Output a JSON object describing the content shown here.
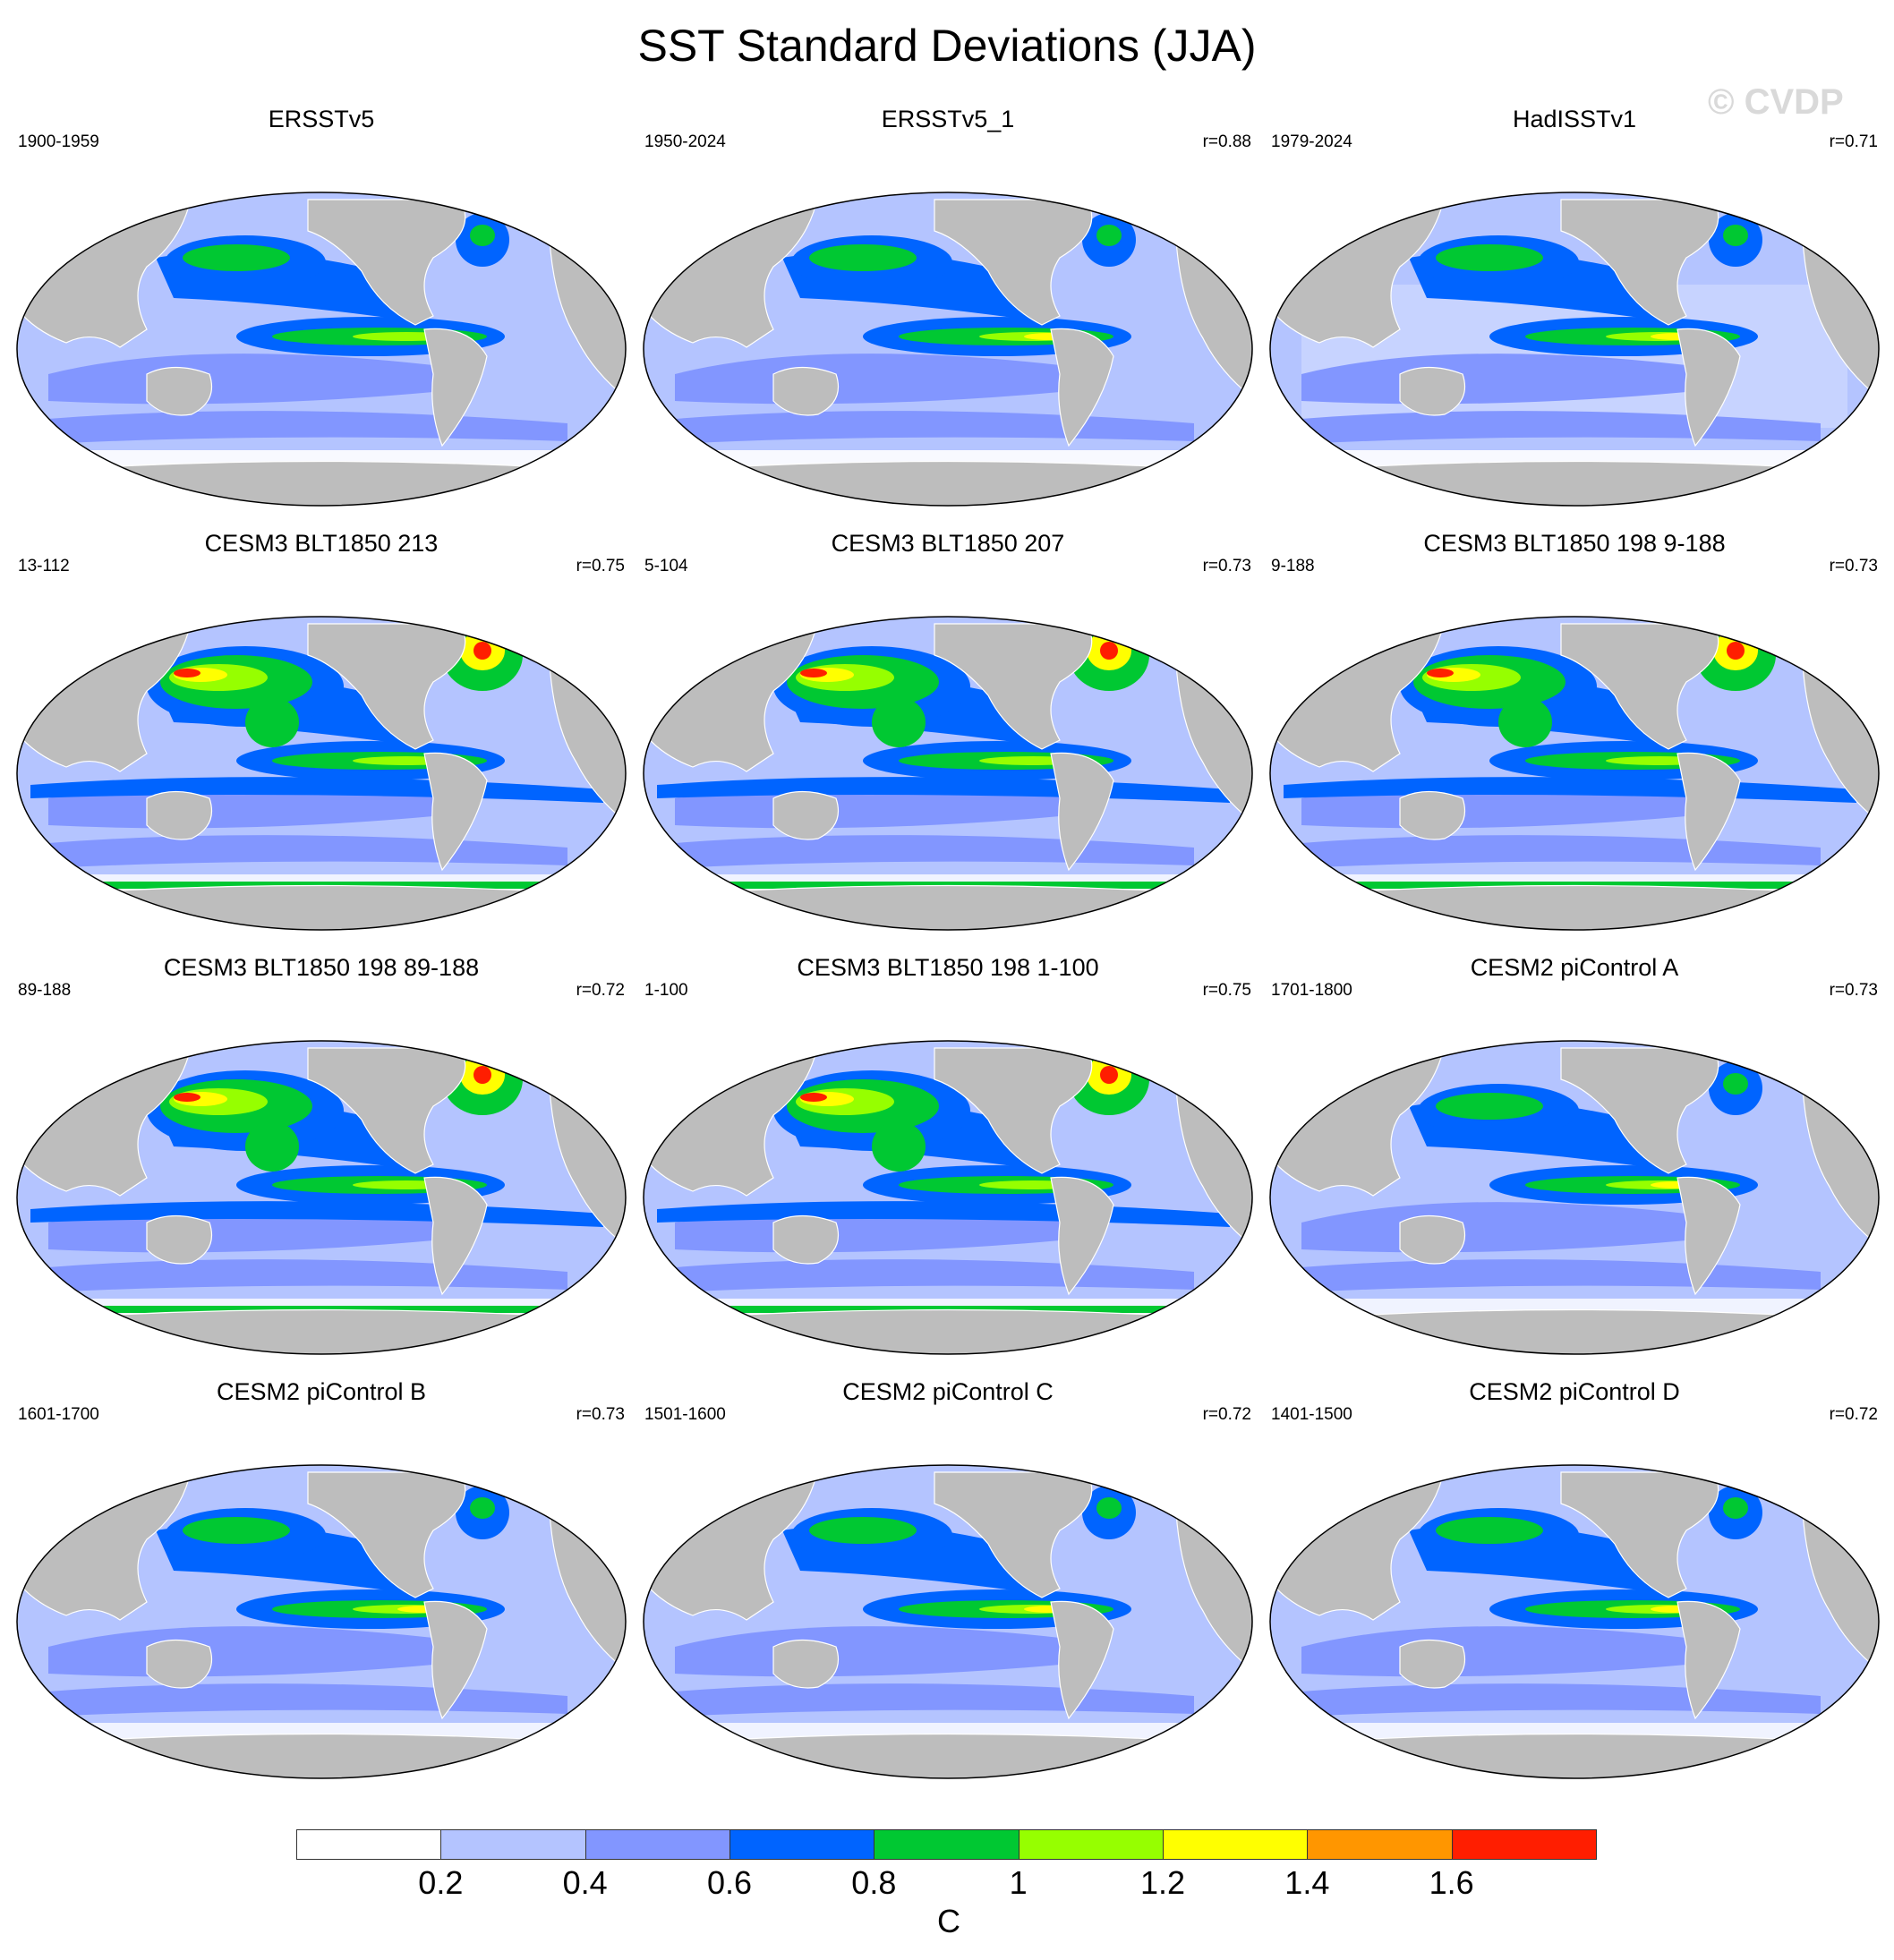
{
  "title": "SST Standard Deviations (JJA)",
  "watermark": "© CVDP",
  "colors": {
    "land": "#bdbdbd",
    "levels": [
      "#ffffff",
      "#b4c4ff",
      "#8296ff",
      "#0064ff",
      "#00c832",
      "#96ff00",
      "#ffff00",
      "#ff9600",
      "#ff1e00"
    ]
  },
  "panels": [
    {
      "title": "ERSSTv5",
      "period": "1900-1959",
      "r": ""
    },
    {
      "title": "ERSSTv5_1",
      "period": "1950-2024",
      "r": "r=0.88"
    },
    {
      "title": "HadISSTv1",
      "period": "1979-2024",
      "r": "r=0.71"
    },
    {
      "title": "CESM3 BLT1850 213",
      "period": "13-112",
      "r": "r=0.75"
    },
    {
      "title": "CESM3 BLT1850 207",
      "period": "5-104",
      "r": "r=0.73"
    },
    {
      "title": "CESM3 BLT1850 198 9-188",
      "period": "9-188",
      "r": "r=0.73"
    },
    {
      "title": "CESM3 BLT1850 198 89-188",
      "period": "89-188",
      "r": "r=0.72"
    },
    {
      "title": "CESM3 BLT1850 198 1-100",
      "period": "1-100",
      "r": "r=0.75"
    },
    {
      "title": "CESM2 piControl A",
      "period": "1701-1800",
      "r": "r=0.73"
    },
    {
      "title": "CESM2 piControl B",
      "period": "1601-1700",
      "r": "r=0.73"
    },
    {
      "title": "CESM2 piControl C",
      "period": "1501-1600",
      "r": "r=0.72"
    },
    {
      "title": "CESM2 piControl D",
      "period": "1401-1500",
      "r": "r=0.72"
    }
  ],
  "colorbar": {
    "ticks": [
      "0.2",
      "0.4",
      "0.6",
      "0.8",
      "1",
      "1.2",
      "1.4",
      "1.6"
    ],
    "unit": "C"
  }
}
